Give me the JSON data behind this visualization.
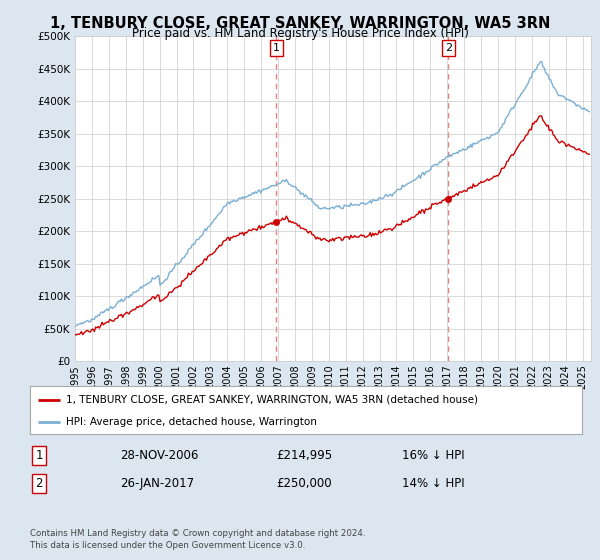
{
  "title": "1, TENBURY CLOSE, GREAT SANKEY, WARRINGTON, WA5 3RN",
  "subtitle": "Price paid vs. HM Land Registry's House Price Index (HPI)",
  "ylabel_ticks": [
    "£0",
    "£50K",
    "£100K",
    "£150K",
    "£200K",
    "£250K",
    "£300K",
    "£350K",
    "£400K",
    "£450K",
    "£500K"
  ],
  "ytick_values": [
    0,
    50000,
    100000,
    150000,
    200000,
    250000,
    300000,
    350000,
    400000,
    450000,
    500000
  ],
  "ylim": [
    0,
    500000
  ],
  "xlim_start": 1995.0,
  "xlim_end": 2025.5,
  "sale1_date": 2006.91,
  "sale1_price": 214995,
  "sale1_label": "1",
  "sale2_date": 2017.07,
  "sale2_price": 250000,
  "sale2_label": "2",
  "hpi_color": "#7bafd4",
  "property_color": "#cc0000",
  "sale_marker_color": "#cc0000",
  "sale_vline_color": "#e88080",
  "background_color": "#dce6f0",
  "plot_bg_color": "#ffffff",
  "legend_label_property": "1, TENBURY CLOSE, GREAT SANKEY, WARRINGTON, WA5 3RN (detached house)",
  "legend_label_hpi": "HPI: Average price, detached house, Warrington",
  "table_row1_num": "1",
  "table_row1_date": "28-NOV-2006",
  "table_row1_price": "£214,995",
  "table_row1_hpi": "16% ↓ HPI",
  "table_row2_num": "2",
  "table_row2_date": "26-JAN-2017",
  "table_row2_price": "£250,000",
  "table_row2_hpi": "14% ↓ HPI",
  "footnote": "Contains HM Land Registry data © Crown copyright and database right 2024.\nThis data is licensed under the Open Government Licence v3.0.",
  "x_year_labels": [
    "1995",
    "1996",
    "1997",
    "1998",
    "1999",
    "2000",
    "2001",
    "2002",
    "2003",
    "2004",
    "2005",
    "2006",
    "2007",
    "2008",
    "2009",
    "2010",
    "2011",
    "2012",
    "2013",
    "2014",
    "2015",
    "2016",
    "2017",
    "2018",
    "2019",
    "2020",
    "2021",
    "2022",
    "2023",
    "2024",
    "2025"
  ],
  "x_years": [
    1995,
    1996,
    1997,
    1998,
    1999,
    2000,
    2001,
    2002,
    2003,
    2004,
    2005,
    2006,
    2007,
    2008,
    2009,
    2010,
    2011,
    2012,
    2013,
    2014,
    2015,
    2016,
    2017,
    2018,
    2019,
    2020,
    2021,
    2022,
    2023,
    2024,
    2025
  ]
}
